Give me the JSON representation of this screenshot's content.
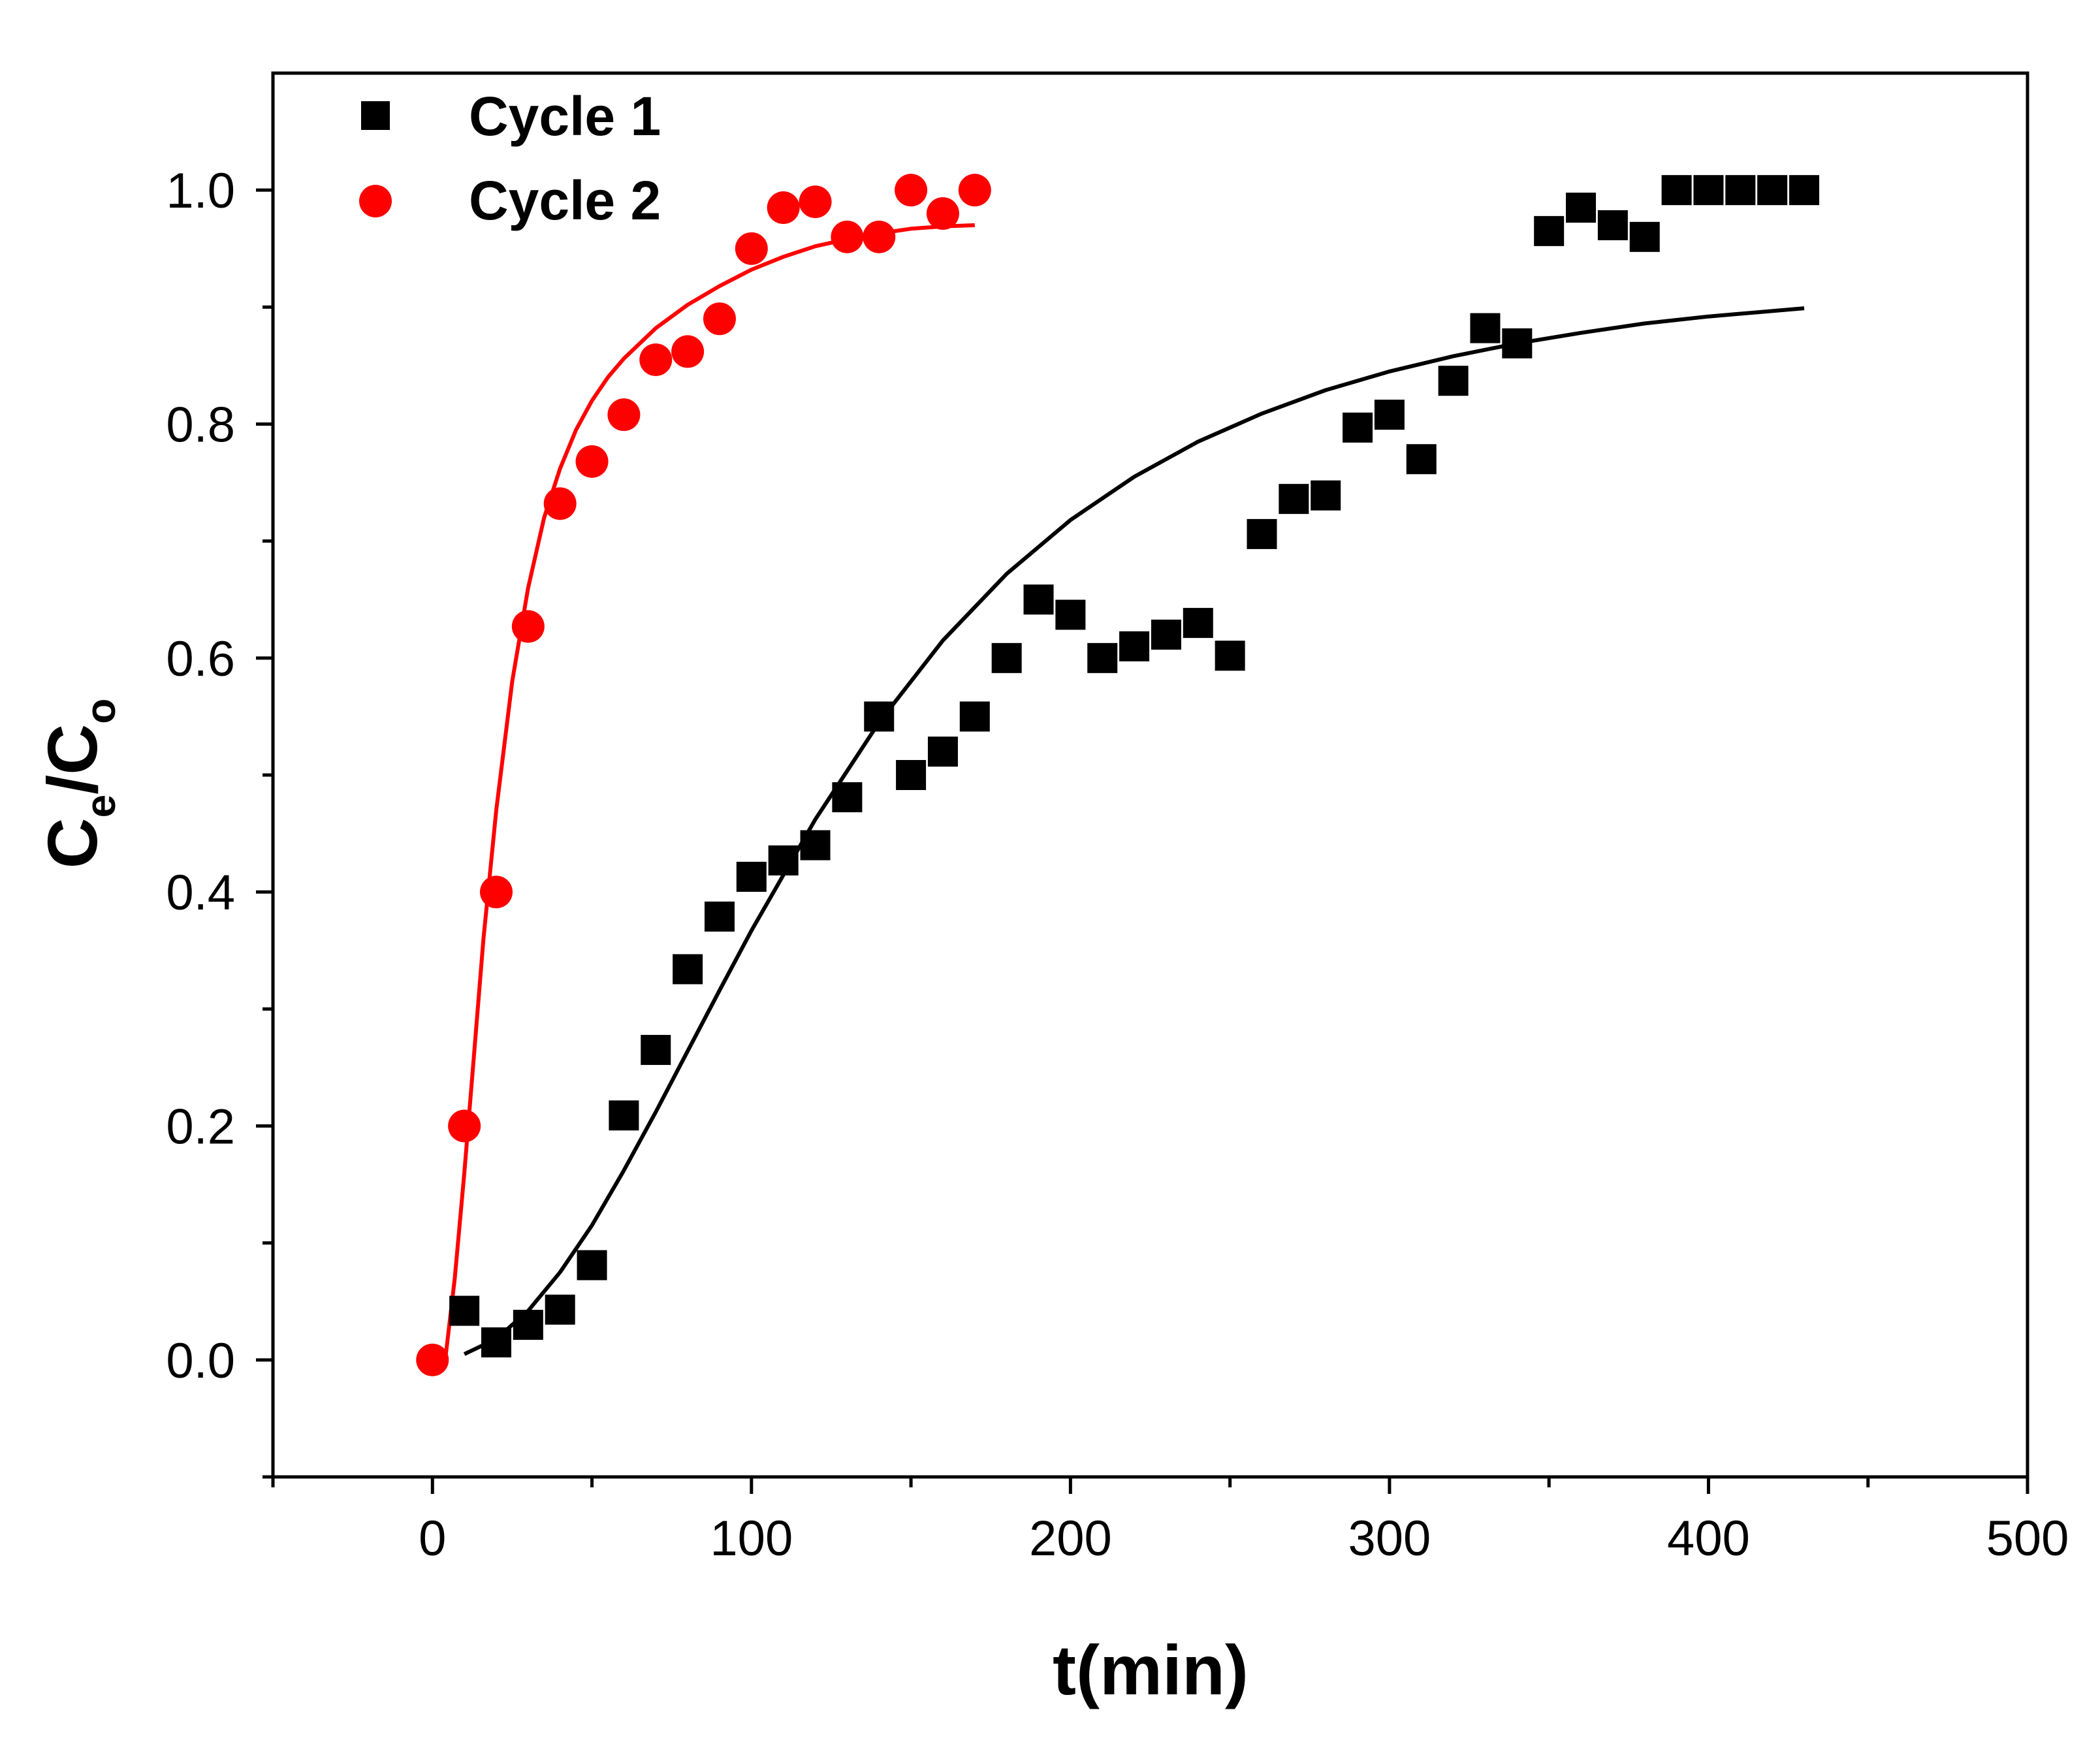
{
  "chart_data": {
    "type": "scatter",
    "title": "",
    "xlabel": "t(min)",
    "ylabel_main": "C",
    "ylabel_sub1": "e",
    "ylabel_mid": "/C",
    "ylabel_sub2": "o",
    "xlim": [
      -50,
      500
    ],
    "ylim": [
      -0.1,
      1.1
    ],
    "x_ticks": [
      0,
      100,
      200,
      300,
      400,
      500
    ],
    "x_tick_labels": [
      "0",
      "100",
      "200",
      "300",
      "400",
      "500"
    ],
    "x_minor_ticks": [
      -50,
      50,
      150,
      250,
      350,
      450
    ],
    "y_ticks": [
      0.0,
      0.2,
      0.4,
      0.6,
      0.8,
      1.0
    ],
    "y_tick_labels": [
      "0.0",
      "0.2",
      "0.4",
      "0.6",
      "0.8",
      "1.0"
    ],
    "y_minor_ticks": [
      -0.1,
      0.1,
      0.3,
      0.5,
      0.7,
      0.9
    ],
    "grid": false,
    "legend_position": "top-left",
    "series": [
      {
        "name": "Cycle 1",
        "marker": "square",
        "color": "#000000",
        "x": [
          10,
          20,
          30,
          40,
          50,
          60,
          70,
          80,
          90,
          100,
          110,
          120,
          130,
          140,
          150,
          160,
          170,
          180,
          190,
          200,
          210,
          220,
          230,
          240,
          250,
          260,
          270,
          280,
          290,
          300,
          310,
          320,
          330,
          340,
          350,
          360,
          370,
          380,
          390,
          400,
          410,
          420,
          430
        ],
        "y": [
          0.042,
          0.015,
          0.03,
          0.043,
          0.081,
          0.209,
          0.265,
          0.334,
          0.379,
          0.413,
          0.427,
          0.44,
          0.481,
          0.55,
          0.5,
          0.52,
          0.55,
          0.6,
          0.65,
          0.637,
          0.6,
          0.61,
          0.62,
          0.63,
          0.602,
          0.706,
          0.736,
          0.739,
          0.797,
          0.808,
          0.77,
          0.837,
          0.882,
          0.869,
          0.965,
          0.985,
          0.97,
          0.96,
          1.0,
          1.0,
          1.0,
          1.0,
          1.0
        ]
      },
      {
        "name": "Cycle 2",
        "marker": "circle",
        "color": "#ff0000",
        "x": [
          0,
          10,
          20,
          30,
          40,
          50,
          60,
          70,
          80,
          90,
          100,
          110,
          120,
          130,
          140,
          150,
          160,
          170
        ],
        "y": [
          0.0,
          0.2,
          0.4,
          0.627,
          0.732,
          0.768,
          0.808,
          0.855,
          0.862,
          0.89,
          0.95,
          0.985,
          0.99,
          0.96,
          0.96,
          1.0,
          0.98,
          1.0
        ]
      }
    ],
    "fits": [
      {
        "name": "Cycle 1 fit",
        "color": "#000000",
        "x": [
          10,
          20,
          30,
          40,
          50,
          60,
          70,
          80,
          90,
          100,
          120,
          140,
          160,
          180,
          200,
          220,
          240,
          260,
          280,
          300,
          320,
          340,
          360,
          380,
          400,
          430
        ],
        "y": [
          0.005,
          0.018,
          0.042,
          0.075,
          0.115,
          0.162,
          0.212,
          0.264,
          0.316,
          0.367,
          0.462,
          0.545,
          0.615,
          0.672,
          0.718,
          0.755,
          0.785,
          0.809,
          0.829,
          0.845,
          0.858,
          0.869,
          0.878,
          0.886,
          0.892,
          0.899
        ]
      },
      {
        "name": "Cycle 2 fit",
        "color": "#ff0000",
        "x": [
          4,
          7,
          10,
          13,
          16,
          20,
          25,
          30,
          35,
          40,
          45,
          50,
          55,
          60,
          70,
          80,
          90,
          100,
          110,
          120,
          130,
          140,
          150,
          160,
          170
        ],
        "y": [
          0.0,
          0.07,
          0.16,
          0.26,
          0.36,
          0.47,
          0.58,
          0.66,
          0.72,
          0.762,
          0.795,
          0.82,
          0.84,
          0.856,
          0.882,
          0.902,
          0.918,
          0.932,
          0.943,
          0.952,
          0.958,
          0.963,
          0.967,
          0.969,
          0.97
        ]
      }
    ]
  }
}
